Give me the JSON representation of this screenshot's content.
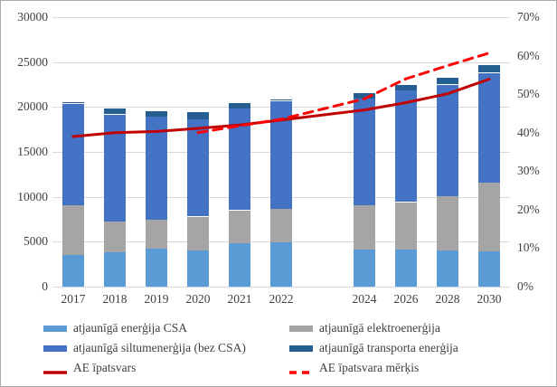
{
  "chart_data": {
    "type": "bar",
    "subtype": "stacked-bar-with-lines",
    "categories": [
      "2017",
      "2018",
      "2019",
      "2020",
      "2021",
      "2022",
      "",
      "2024",
      "2026",
      "2028",
      "2030"
    ],
    "series": [
      {
        "name": "atjaunīgā enerģija CSA",
        "color": "#5B9BD5",
        "values": [
          3600,
          3800,
          4200,
          4100,
          4850,
          4900,
          null,
          4100,
          4150,
          4050,
          3900
        ]
      },
      {
        "name": "atjaunīgā elektroenerģija",
        "color": "#A5A5A5",
        "values": [
          5500,
          3500,
          3200,
          3700,
          3650,
          3750,
          null,
          4950,
          5250,
          6100,
          7750
        ]
      },
      {
        "name": "atjaunīgā siltumenerģija (bez CSA)",
        "color": "#4472C4",
        "values": [
          11250,
          11850,
          11500,
          10800,
          11300,
          12000,
          null,
          11850,
          12400,
          12350,
          12150
        ]
      },
      {
        "name": "atjaunīgā transporta enerģija",
        "color": "#255E91",
        "values": [
          150,
          650,
          650,
          800,
          650,
          150,
          null,
          600,
          650,
          750,
          850
        ]
      }
    ],
    "lines": [
      {
        "name": "AE īpatsvars",
        "color": "#C00000",
        "style": "solid",
        "axis": "right",
        "values": [
          39.0,
          40.0,
          40.3,
          41.1,
          42.0,
          43.3,
          null,
          45.9,
          47.8,
          50.1,
          53.9
        ]
      },
      {
        "name": "AE īpatsvara mērķis",
        "color": "#FF0000",
        "style": "dashed",
        "axis": "right",
        "values": [
          null,
          null,
          null,
          40.0,
          41.8,
          43.5,
          null,
          48.8,
          54.0,
          57.4,
          60.7
        ]
      }
    ],
    "left_axis": {
      "min": 0,
      "max": 30000,
      "step": 5000,
      "ticks": [
        "0",
        "5000",
        "10000",
        "15000",
        "20000",
        "25000",
        "30000"
      ]
    },
    "right_axis": {
      "min": 0,
      "max": 70,
      "step": 10,
      "ticks": [
        "0%",
        "10%",
        "20%",
        "30%",
        "40%",
        "50%",
        "60%",
        "70%"
      ]
    },
    "grid": true,
    "legend_position": "bottom",
    "title": "",
    "xlabel": "",
    "ylabel": ""
  },
  "legend_layout": {
    "columns": [
      [
        {
          "kind": "rect",
          "ref": "series",
          "index": 0
        },
        {
          "kind": "rect",
          "ref": "series",
          "index": 2
        },
        {
          "kind": "line",
          "ref": "lines",
          "index": 0
        }
      ],
      [
        {
          "kind": "rect",
          "ref": "series",
          "index": 1
        },
        {
          "kind": "rect",
          "ref": "series",
          "index": 3
        },
        {
          "kind": "line",
          "ref": "lines",
          "index": 1
        }
      ]
    ]
  },
  "colors": {
    "gridline": "#D9D9D9",
    "axis_text": "#404040",
    "figure_border": "#ABABAB",
    "background": "#FFFFFF"
  }
}
